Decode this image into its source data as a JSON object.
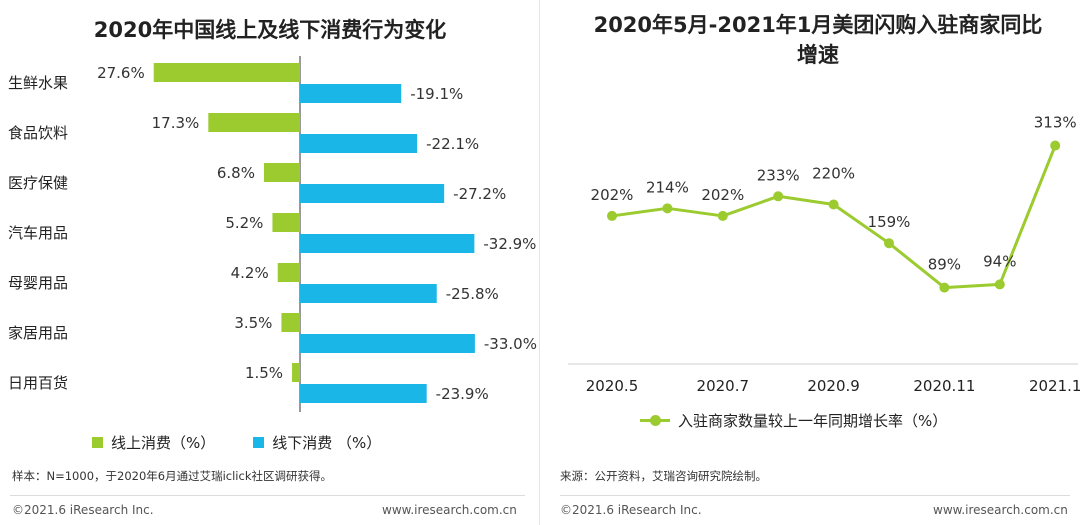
{
  "colors": {
    "online": "#9bcb2f",
    "offline": "#1bb6e8",
    "line": "#9bcb2f",
    "axis": "#333333"
  },
  "left": {
    "title": "2020年中国线上及线下消费行为变化",
    "legend": {
      "online": "线上消费（%）",
      "offline": "线下消费 （%）"
    },
    "note": "样本：N=1000，于2020年6月通过艾瑞iclick社区调研获得。",
    "footer_left": "©2021.6 iResearch Inc.",
    "footer_right": "www.iresearch.com.cn"
  },
  "right": {
    "title_line1": "2020年5月-2021年1月美团闪购入驻商家同比",
    "title_line2": "增速",
    "legend": "入驻商家数量较上一年同期增长率（%）",
    "note": "来源：公开资料，艾瑞咨询研究院绘制。",
    "footer_left": "©2021.6 iResearch Inc.",
    "footer_right": "www.iresearch.com.cn"
  },
  "chart_data": [
    {
      "type": "bar",
      "orientation": "horizontal",
      "title": "2020年中国线上及线下消费行为变化",
      "categories": [
        "生鲜水果",
        "食品饮料",
        "医疗保健",
        "汽车用品",
        "母婴用品",
        "家居用品",
        "日用百货"
      ],
      "series": [
        {
          "name": "线上消费（%）",
          "values": [
            27.6,
            17.3,
            6.8,
            5.2,
            4.2,
            3.5,
            1.5
          ],
          "labels": [
            "27.6%",
            "17.3%",
            "6.8%",
            "5.2%",
            "4.2%",
            "3.5%",
            "1.5%"
          ]
        },
        {
          "name": "线下消费 （%）",
          "values": [
            -19.1,
            -22.1,
            -27.2,
            -32.9,
            -25.8,
            -33.0,
            -23.9
          ],
          "labels": [
            "-19.1%",
            "-22.1%",
            "-27.2%",
            "-32.9%",
            "-25.8%",
            "-33.0%",
            "-23.9%"
          ]
        }
      ],
      "legend_position": "bottom-left"
    },
    {
      "type": "line",
      "title": "2020年5月-2021年1月美团闪购入驻商家同比增速",
      "x": [
        "2020.5",
        "2020.6",
        "2020.7",
        "2020.8",
        "2020.9",
        "2020.10",
        "2020.11",
        "2020.12",
        "2021.1"
      ],
      "x_tick_labels": [
        "2020.5",
        "2020.7",
        "2020.9",
        "2020.11",
        "2021.1"
      ],
      "series": [
        {
          "name": "入驻商家数量较上一年同期增长率（%）",
          "values": [
            202,
            214,
            202,
            233,
            220,
            159,
            89,
            94,
            313
          ],
          "labels": [
            "202%",
            "214%",
            "202%",
            "233%",
            "220%",
            "159%",
            "89%",
            "94%",
            "313%"
          ]
        }
      ],
      "legend_position": "bottom"
    }
  ]
}
